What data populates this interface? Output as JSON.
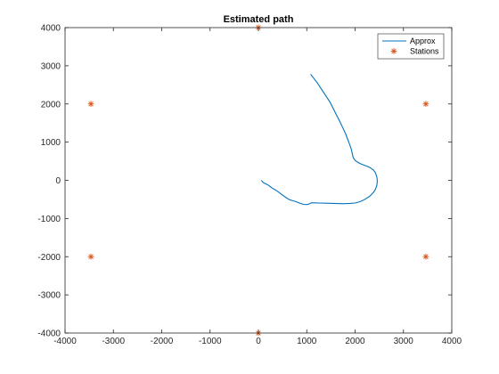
{
  "chart_data": {
    "type": "line",
    "title": "Estimated path",
    "xlabel": "",
    "ylabel": "",
    "xlim": [
      -4000,
      4000
    ],
    "ylim": [
      -4000,
      4000
    ],
    "xticks": [
      -4000,
      -3000,
      -2000,
      -1000,
      0,
      1000,
      2000,
      3000,
      4000
    ],
    "yticks": [
      -4000,
      -3000,
      -2000,
      -1000,
      0,
      1000,
      2000,
      3000,
      4000
    ],
    "grid": false,
    "legend_position": "top-right",
    "series": [
      {
        "name": "Approx",
        "type": "line",
        "color": "#0072BD",
        "points": [
          [
            60,
            0
          ],
          [
            100,
            -60
          ],
          [
            150,
            -90
          ],
          [
            210,
            -130
          ],
          [
            280,
            -200
          ],
          [
            350,
            -250
          ],
          [
            420,
            -310
          ],
          [
            500,
            -390
          ],
          [
            560,
            -440
          ],
          [
            630,
            -500
          ],
          [
            700,
            -530
          ],
          [
            780,
            -560
          ],
          [
            860,
            -600
          ],
          [
            930,
            -630
          ],
          [
            1000,
            -635
          ],
          [
            1050,
            -620
          ],
          [
            1090,
            -590
          ],
          [
            1150,
            -590
          ],
          [
            1250,
            -595
          ],
          [
            1400,
            -600
          ],
          [
            1550,
            -605
          ],
          [
            1700,
            -610
          ],
          [
            1800,
            -610
          ],
          [
            1900,
            -605
          ],
          [
            2000,
            -595
          ],
          [
            2100,
            -560
          ],
          [
            2200,
            -500
          ],
          [
            2300,
            -420
          ],
          [
            2370,
            -330
          ],
          [
            2420,
            -240
          ],
          [
            2450,
            -130
          ],
          [
            2460,
            -20
          ],
          [
            2450,
            90
          ],
          [
            2420,
            200
          ],
          [
            2380,
            270
          ],
          [
            2300,
            340
          ],
          [
            2200,
            390
          ],
          [
            2100,
            440
          ],
          [
            2000,
            520
          ],
          [
            1960,
            600
          ],
          [
            1920,
            820
          ],
          [
            1870,
            1000
          ],
          [
            1800,
            1230
          ],
          [
            1700,
            1500
          ],
          [
            1600,
            1750
          ],
          [
            1480,
            2050
          ],
          [
            1350,
            2300
          ],
          [
            1220,
            2550
          ],
          [
            1080,
            2780
          ]
        ]
      },
      {
        "name": "Stations",
        "type": "scatter",
        "marker": "asterisk",
        "color": "#D95319",
        "points": [
          [
            0,
            4000
          ],
          [
            3464,
            2000
          ],
          [
            3464,
            -2000
          ],
          [
            0,
            -4000
          ],
          [
            -3464,
            -2000
          ],
          [
            -3464,
            2000
          ]
        ]
      }
    ]
  }
}
